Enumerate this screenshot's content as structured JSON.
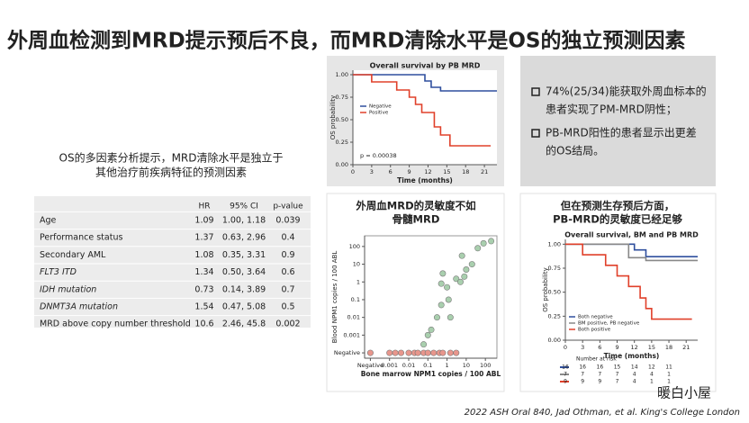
{
  "header": {
    "title": "外周血检测到MRD提示预后不良，而MRD清除水平是OS的独立预测因素"
  },
  "left_note": {
    "lines": [
      "OS的多因素分析提示，MRD清除水平是独立于",
      "其他治疗前疾病特征的预测因素"
    ]
  },
  "table": {
    "columns": [
      "HR",
      "95% CI",
      "p-value"
    ],
    "rows": [
      [
        "Age",
        "1.09",
        "1.00, 1.18",
        "0.039"
      ],
      [
        "Performance status",
        "1.37",
        "0.63, 2.96",
        "0.4"
      ],
      [
        "Secondary AML",
        "1.08",
        "0.35, 3.31",
        "0.9"
      ],
      [
        "FLT3 ITD",
        "1.34",
        "0.50, 3.64",
        "0.6"
      ],
      [
        "IDH mutation",
        "0.73",
        "0.14, 3.89",
        "0.7"
      ],
      [
        "DNMT3A mutation",
        "1.54",
        "0.47, 5.08",
        "0.5"
      ],
      [
        "MRD above copy number threshold",
        "10.6",
        "2.46, 45.8",
        "0.002"
      ]
    ]
  },
  "km1": {
    "type": "line",
    "title": "Overall survival by PB MRD",
    "x_label": "Time (months)",
    "y_label": "OS probability",
    "annotation": "p = 0.00038",
    "xlim": [
      0,
      23
    ],
    "ylim": [
      0,
      1.05
    ],
    "xticks": [
      0,
      3,
      6,
      9,
      12,
      15,
      18,
      21
    ],
    "yticks": [
      {
        "value": 0,
        "label": "0.00"
      },
      {
        "value": 0.25,
        "label": "0.25"
      },
      {
        "value": 0.5,
        "label": "0.50"
      },
      {
        "value": 0.75,
        "label": "0.75"
      },
      {
        "value": 1,
        "label": "1.00"
      }
    ],
    "series": [
      {
        "name": "Negative",
        "color": "#2f4f9e",
        "x": [
          0,
          11.5,
          11.5,
          12.5,
          12.5,
          14,
          14,
          23
        ],
        "values": [
          1,
          1,
          0.93,
          0.93,
          0.86,
          0.86,
          0.82,
          0.82
        ]
      },
      {
        "name": "Positive",
        "color": "#e0402a",
        "x": [
          0,
          3,
          3,
          7,
          7,
          9,
          9,
          10,
          10,
          11,
          11,
          13,
          13,
          14,
          14,
          15.5,
          15.5,
          22
        ],
        "values": [
          1,
          1,
          0.92,
          0.92,
          0.83,
          0.83,
          0.75,
          0.75,
          0.67,
          0.67,
          0.58,
          0.58,
          0.42,
          0.42,
          0.33,
          0.33,
          0.21,
          0.21
        ]
      }
    ]
  },
  "bullets": [
    {
      "lines": [
        "74%(25/34)能获取外周血标本的",
        "患者实现了PM-MRD阴性；"
      ]
    },
    {
      "lines": [
        "PB-MRD阳性的患者显示出更差",
        "的OS结局。"
      ]
    }
  ],
  "scatter": {
    "type": "scatter",
    "heading": [
      "外周血MRD的灵敏度不如",
      "骨髓MRD"
    ],
    "x_label": "Bone marrow NPM1 copies / 100 ABL",
    "y_label": "Blood NPM1 copies / 100 ABL",
    "log_scale": true,
    "xlim": [
      5e-05,
      400
    ],
    "ylim": [
      5e-05,
      400
    ],
    "xticks": [
      {
        "value": 0.0001,
        "label": "Negative"
      },
      0.001,
      0.01,
      0.1,
      1,
      10,
      100
    ],
    "yticks": [
      {
        "value": 0.0001,
        "label": "Negative"
      },
      0.001,
      0.01,
      0.1,
      1,
      10,
      100
    ],
    "series": [
      {
        "color": "#e8968c",
        "x": [
          0.0001,
          0.001,
          0.002,
          0.004,
          0.01,
          0.02,
          0.03,
          0.06,
          0.1,
          0.2,
          0.4,
          0.6,
          1.5,
          3
        ],
        "values": [
          0.0001,
          0.0001,
          0.0001,
          0.0001,
          0.0001,
          0.0001,
          0.0001,
          0.0001,
          0.0001,
          0.0001,
          0.0001,
          0.0001,
          0.0001,
          0.0001
        ]
      },
      {
        "color": "#a9cfae",
        "x": [
          0.06,
          0.1,
          0.15,
          0.3,
          0.5,
          0.5,
          0.6,
          1,
          1.2,
          1.5,
          3,
          5,
          6,
          8,
          10,
          20,
          40,
          80,
          200
        ],
        "values": [
          0.0003,
          0.001,
          0.002,
          0.01,
          0.05,
          0.8,
          3,
          0.5,
          0.1,
          0.01,
          1.5,
          1,
          30,
          2,
          5,
          10,
          80,
          150,
          200
        ]
      }
    ]
  },
  "km2": {
    "type": "line",
    "heading": [
      "但在预测生存预后方面，",
      "PB-MRD的灵敏度已经足够"
    ],
    "title": "Overall survival, BM and PB MRD",
    "x_label": "Time (months)",
    "y_label": "OS probability",
    "xlim": [
      0,
      23
    ],
    "ylim": [
      0,
      1.05
    ],
    "xticks": [
      0,
      3,
      6,
      9,
      12,
      15,
      18,
      21
    ],
    "yticks": [
      {
        "value": 0,
        "label": "0.00"
      },
      {
        "value": 0.25,
        "label": "0.25"
      },
      {
        "value": 0.5,
        "label": "0.50"
      },
      {
        "value": 0.75,
        "label": "0.75"
      },
      {
        "value": 1,
        "label": "1.00"
      }
    ],
    "series": [
      {
        "name": "Both negative",
        "color": "#2f4f9e",
        "x": [
          0,
          12,
          12,
          14,
          14,
          23
        ],
        "values": [
          1,
          1,
          0.94,
          0.94,
          0.87,
          0.87
        ]
      },
      {
        "name": "BM positive, PB negative",
        "color": "#888888",
        "x": [
          0,
          11,
          11,
          14,
          14,
          23
        ],
        "values": [
          1,
          1,
          0.86,
          0.86,
          0.83,
          0.83
        ]
      },
      {
        "name": "Both positive",
        "color": "#e0402a",
        "x": [
          0,
          3,
          3,
          7,
          7,
          9,
          9,
          11,
          11,
          13,
          13,
          14,
          14,
          15,
          15,
          22
        ],
        "values": [
          1,
          1,
          0.89,
          0.89,
          0.78,
          0.78,
          0.67,
          0.67,
          0.56,
          0.56,
          0.44,
          0.44,
          0.33,
          0.33,
          0.22,
          0.22
        ]
      }
    ],
    "risk": {
      "title": "Number at risk",
      "rows": [
        [
          16,
          16,
          16,
          15,
          14,
          12,
          11
        ],
        [
          7,
          7,
          7,
          7,
          4,
          4,
          1
        ],
        [
          9,
          9,
          9,
          7,
          4,
          1,
          1
        ]
      ]
    }
  },
  "watermark": "暖白小屋",
  "footer": "2022 ASH Oral 840, Jad Othman, et al. King's College London"
}
